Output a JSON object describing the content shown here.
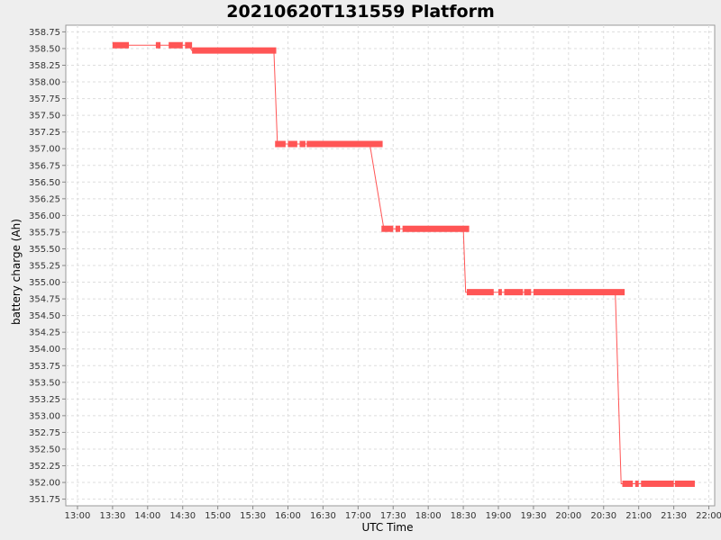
{
  "chart_data": {
    "type": "line",
    "title": "20210620T131559 Platform",
    "xlabel": "UTC Time",
    "ylabel": "battery charge (Ah)",
    "x_ticks": [
      "13:00",
      "13:30",
      "14:00",
      "14:30",
      "15:00",
      "15:30",
      "16:00",
      "16:30",
      "17:00",
      "17:30",
      "18:00",
      "18:30",
      "19:00",
      "19:30",
      "20:00",
      "20:30",
      "21:00",
      "21:30",
      "22:00"
    ],
    "y_ticks": [
      "351.75",
      "352.00",
      "352.25",
      "352.50",
      "352.75",
      "353.00",
      "353.25",
      "353.50",
      "353.75",
      "354.00",
      "354.25",
      "354.50",
      "354.75",
      "355.00",
      "355.25",
      "355.50",
      "355.75",
      "356.00",
      "356.25",
      "356.50",
      "356.75",
      "357.00",
      "357.25",
      "357.50",
      "357.75",
      "358.00",
      "358.25",
      "358.50",
      "358.75"
    ],
    "xlim": [
      "12:50",
      "22:05"
    ],
    "ylim": [
      351.65,
      358.85
    ],
    "grid": true,
    "color": "#ff5555",
    "series": [
      {
        "x": [
          "13:30",
          "13:45",
          "14:05",
          "14:10",
          "14:25",
          "14:30",
          "14:35",
          "14:38",
          "15:20",
          "15:48",
          "15:51",
          "16:00",
          "16:05",
          "16:10",
          "16:15",
          "16:25",
          "17:10",
          "17:22",
          "17:25",
          "17:33",
          "17:40",
          "17:45",
          "18:30",
          "18:32",
          "18:35",
          "18:50",
          "19:00",
          "19:05",
          "19:20",
          "19:30",
          "20:40",
          "20:45",
          "20:55",
          "21:00",
          "21:30",
          "21:45"
        ],
        "y": [
          358.55,
          358.55,
          358.55,
          358.55,
          358.55,
          358.55,
          358.55,
          358.47,
          358.47,
          358.47,
          357.07,
          357.07,
          357.07,
          357.07,
          357.07,
          357.07,
          357.07,
          355.8,
          355.8,
          355.8,
          355.8,
          355.8,
          355.8,
          354.85,
          354.85,
          354.85,
          354.85,
          354.85,
          354.85,
          354.85,
          354.85,
          351.98,
          351.98,
          351.98,
          351.98,
          351.98
        ]
      }
    ],
    "segments": [
      {
        "from": "13:30",
        "to": "13:44",
        "y": 358.55
      },
      {
        "from": "14:07",
        "to": "14:11",
        "y": 358.55
      },
      {
        "from": "14:18",
        "to": "14:30",
        "y": 358.55
      },
      {
        "from": "14:32",
        "to": "14:38",
        "y": 358.55
      },
      {
        "from": "14:38",
        "to": "15:50",
        "y": 358.47
      },
      {
        "from": "15:49",
        "to": "15:58",
        "y": 357.07
      },
      {
        "from": "16:00",
        "to": "16:08",
        "y": 357.07
      },
      {
        "from": "16:10",
        "to": "16:15",
        "y": 357.07
      },
      {
        "from": "16:16",
        "to": "17:21",
        "y": 357.07
      },
      {
        "from": "17:20",
        "to": "17:30",
        "y": 355.8
      },
      {
        "from": "17:32",
        "to": "17:36",
        "y": 355.8
      },
      {
        "from": "17:38",
        "to": "18:35",
        "y": 355.8
      },
      {
        "from": "18:33",
        "to": "18:56",
        "y": 354.85
      },
      {
        "from": "19:00",
        "to": "19:03",
        "y": 354.85
      },
      {
        "from": "19:05",
        "to": "19:21",
        "y": 354.85
      },
      {
        "from": "19:22",
        "to": "19:28",
        "y": 354.85
      },
      {
        "from": "19:30",
        "to": "20:48",
        "y": 354.85
      },
      {
        "from": "20:46",
        "to": "20:55",
        "y": 351.98
      },
      {
        "from": "20:57",
        "to": "21:00",
        "y": 351.98
      },
      {
        "from": "21:02",
        "to": "21:30",
        "y": 351.98
      },
      {
        "from": "21:31",
        "to": "21:48",
        "y": 351.98
      }
    ]
  }
}
